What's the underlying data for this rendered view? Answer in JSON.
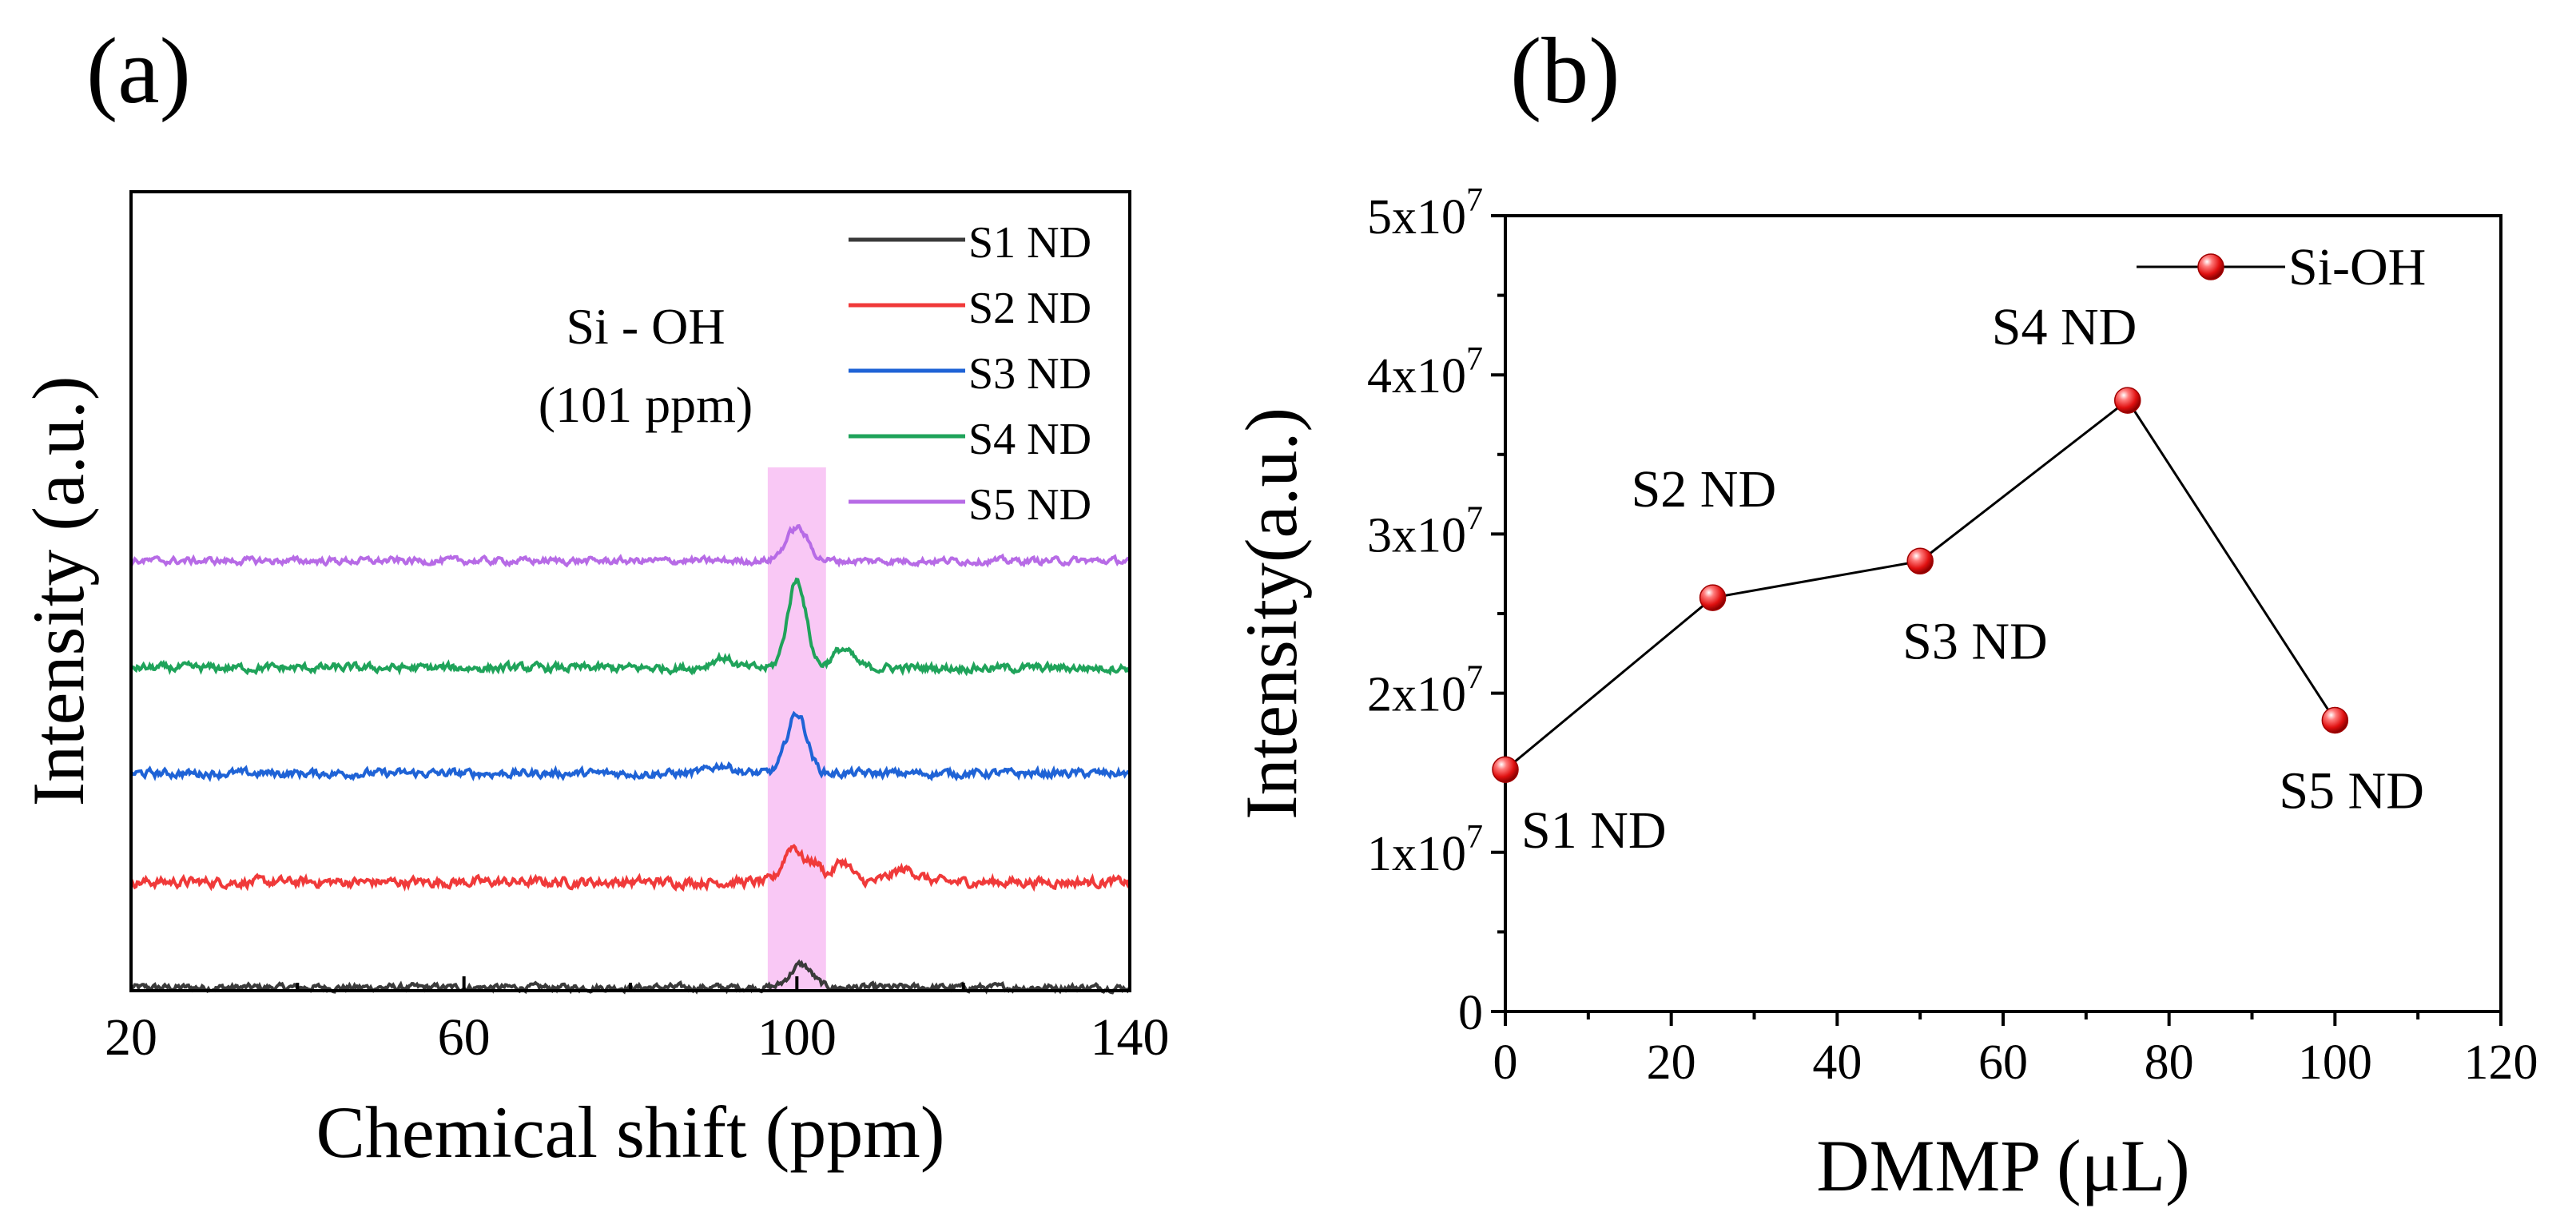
{
  "chart_data": [
    {
      "panel_label": "(a)",
      "type": "line",
      "title": "",
      "xlabel": "Chemical shift (ppm)",
      "ylabel": "Intensity (a.u.)",
      "xlim": [
        20,
        140
      ],
      "x_ticks": [
        "20",
        "60",
        "100",
        "140"
      ],
      "y_ticks_shown": false,
      "highlight_band": {
        "from": 96.5,
        "to": 103.5,
        "color": "#f9c8f5"
      },
      "annotation": {
        "line1": "Si - OH",
        "line2": "(101 ppm)"
      },
      "legend_position": "top-right",
      "series": [
        {
          "name": "S1 ND",
          "color": "#3a3a3a",
          "offset": 0.0,
          "peaks": [
            {
              "x": 100.5,
              "h": 0.22,
              "w": 1.3
            }
          ],
          "noise": 0.05
        },
        {
          "name": "S2 ND",
          "color": "#f03a3a",
          "offset": 1.0,
          "peaks": [
            {
              "x": 99.5,
              "h": 0.35,
              "w": 1.1
            },
            {
              "x": 102.2,
              "h": 0.18,
              "w": 0.9
            },
            {
              "x": 105.5,
              "h": 0.2,
              "w": 1.0
            },
            {
              "x": 113,
              "h": 0.12,
              "w": 1.6
            }
          ],
          "noise": 0.07
        },
        {
          "name": "S3 ND",
          "color": "#1f63d6",
          "offset": 2.0,
          "peaks": [
            {
              "x": 100.0,
              "h": 0.58,
              "w": 1.2
            },
            {
              "x": 91.0,
              "h": 0.08,
              "w": 1.4
            }
          ],
          "noise": 0.06
        },
        {
          "name": "S4 ND",
          "color": "#1fa35a",
          "offset": 3.0,
          "peaks": [
            {
              "x": 100.0,
              "h": 0.85,
              "w": 1.1
            },
            {
              "x": 105.5,
              "h": 0.18,
              "w": 1.2
            },
            {
              "x": 91.0,
              "h": 0.1,
              "w": 1.2
            }
          ],
          "noise": 0.06
        },
        {
          "name": "S5 ND",
          "color": "#b76be6",
          "offset": 4.0,
          "peaks": [
            {
              "x": 100.0,
              "h": 0.32,
              "w": 1.3
            }
          ],
          "noise": 0.05
        }
      ]
    },
    {
      "panel_label": "(b)",
      "type": "line",
      "title": "",
      "xlabel": "DMMP (μL)",
      "ylabel": "Intensity(a.u.)",
      "xlim": [
        0,
        120
      ],
      "ylim": [
        0,
        50000000
      ],
      "x_ticks": [
        "0",
        "20",
        "40",
        "60",
        "80",
        "100",
        "120"
      ],
      "y_ticks": [
        {
          "value": 0,
          "mantissa": "0",
          "exp": ""
        },
        {
          "value": 10000000,
          "mantissa": "1x10",
          "exp": "7"
        },
        {
          "value": 20000000,
          "mantissa": "2x10",
          "exp": "7"
        },
        {
          "value": 30000000,
          "mantissa": "3x10",
          "exp": "7"
        },
        {
          "value": 40000000,
          "mantissa": "4x10",
          "exp": "7"
        },
        {
          "value": 50000000,
          "mantissa": "5x10",
          "exp": "7"
        }
      ],
      "legend": {
        "label": "Si-OH",
        "position": "top-right"
      },
      "series": [
        {
          "name": "Si-OH",
          "marker_color": "#e01010",
          "x": [
            0,
            25,
            50,
            75,
            100
          ],
          "y": [
            15200000,
            26000000,
            28300000,
            38400000,
            18300000
          ],
          "point_labels": [
            "S1 ND",
            "S2 ND",
            "S3 ND",
            "S4 ND",
            "S5 ND"
          ]
        }
      ]
    }
  ]
}
